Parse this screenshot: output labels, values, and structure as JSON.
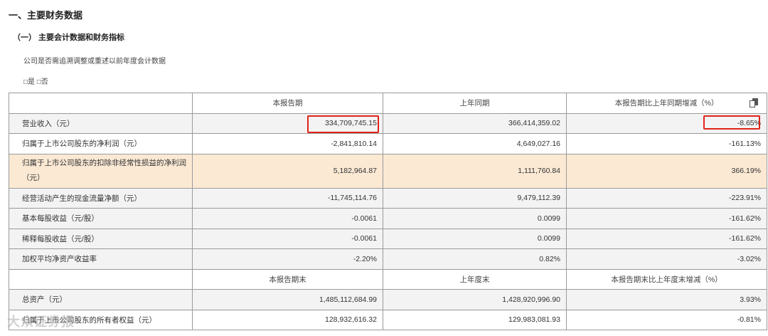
{
  "heading1": "一、主要财务数据",
  "heading2": "（一） 主要会计数据和财务指标",
  "note": "公司是否需追溯调整或重述以前年度会计数据",
  "choice": "□是 □否",
  "header1": [
    "本报告期",
    "上年同期",
    "本报告期比上年同期增减（%）"
  ],
  "rows1": [
    {
      "label": "营业收入（元）",
      "v1": "334,709,745.15",
      "v2": "366,414,359.02",
      "v3": "-8.65%"
    },
    {
      "label": "归属于上市公司股东的净利润（元）",
      "v1": "-2,841,810.14",
      "v2": "4,649,027.16",
      "v3": "-161.13%"
    },
    {
      "label": "归属于上市公司股东的扣除非经常性损益的净利润（元）",
      "v1": "5,182,964.87",
      "v2": "1,111,760.84",
      "v3": "366.19%"
    },
    {
      "label": "经营活动产生的现金流量净额（元）",
      "v1": "-11,745,114.76",
      "v2": "9,479,112.39",
      "v3": "-223.91%"
    },
    {
      "label": "基本每股收益（元/股）",
      "v1": "-0.0061",
      "v2": "0.0099",
      "v3": "-161.62%"
    },
    {
      "label": "稀释每股收益（元/股）",
      "v1": "-0.0061",
      "v2": "0.0099",
      "v3": "-161.62%"
    },
    {
      "label": "加权平均净资产收益率",
      "v1": "-2.20%",
      "v2": "0.82%",
      "v3": "-3.02%"
    }
  ],
  "header2": [
    "本报告期末",
    "上年度末",
    "本报告期末比上年度末增减（%）"
  ],
  "rows2": [
    {
      "label": "总资产（元）",
      "v1": "1,485,112,684.99",
      "v2": "1,428,920,996.90",
      "v3": "3.93%"
    },
    {
      "label": "归属于上市公司股东的所有者权益（元）",
      "v1": "128,932,616.32",
      "v2": "129,983,081.93",
      "v3": "-0.81%"
    }
  ],
  "watermark": "大众证券报",
  "icons": {
    "copy": "copy-icon"
  },
  "colors": {
    "highlight_box": "#e0231b",
    "highlight_row": "#fbe9d4"
  }
}
